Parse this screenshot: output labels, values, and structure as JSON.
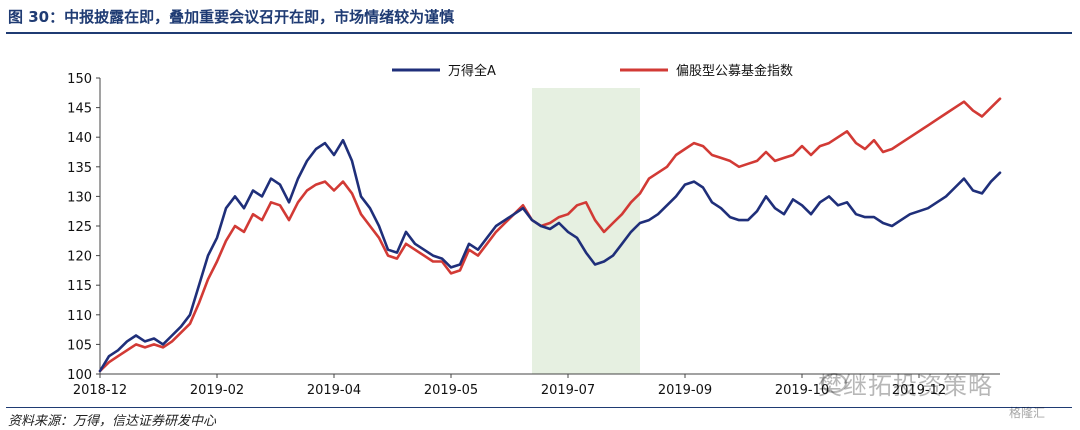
{
  "figure": {
    "title": "图 30：中报披露在即，叠加重要会议召开在即，市场情绪较为谨慎",
    "source": "资料来源：万得，信达证券研发中心",
    "watermark": "樊继拓投资策略",
    "watermark_badge": "格隆汇"
  },
  "colors": {
    "title": "#1f3b73",
    "series1": "#1f2f7a",
    "series2": "#d23a35",
    "highlight": "#e6f0e1"
  },
  "chart_data": {
    "type": "line",
    "title": "",
    "xlabel": "",
    "ylabel": "",
    "ylim": [
      100,
      150
    ],
    "yticks": [
      100,
      105,
      110,
      115,
      120,
      125,
      130,
      135,
      140,
      145,
      150
    ],
    "x_ticks": [
      "2018-12",
      "2019-02",
      "2019-04",
      "2019-05",
      "2019-07",
      "2019-09",
      "2019-10",
      "2019-12"
    ],
    "x_tick_index": [
      0,
      13,
      26,
      39,
      52,
      65,
      78,
      91
    ],
    "xlim_index": [
      0,
      100
    ],
    "grid": false,
    "legend_position": "top",
    "highlight_range_index": [
      48,
      60
    ],
    "series": [
      {
        "name": "万得全A",
        "x_index": [
          0,
          1,
          2,
          3,
          4,
          5,
          6,
          7,
          8,
          9,
          10,
          11,
          12,
          13,
          14,
          15,
          16,
          17,
          18,
          19,
          20,
          21,
          22,
          23,
          24,
          25,
          26,
          27,
          28,
          29,
          30,
          31,
          32,
          33,
          34,
          35,
          36,
          37,
          38,
          39,
          40,
          41,
          42,
          43,
          44,
          45,
          46,
          47,
          48,
          49,
          50,
          51,
          52,
          53,
          54,
          55,
          56,
          57,
          58,
          59,
          60,
          61,
          62,
          63,
          64,
          65,
          66,
          67,
          68,
          69,
          70,
          71,
          72,
          73,
          74,
          75,
          76,
          77,
          78,
          79,
          80,
          81,
          82,
          83,
          84,
          85,
          86,
          87,
          88,
          89,
          90,
          91,
          92,
          93,
          94,
          95,
          96,
          97,
          98,
          99,
          100
        ],
        "values": [
          100.5,
          103.0,
          104.0,
          105.5,
          106.5,
          105.5,
          106.0,
          105.0,
          106.5,
          108.0,
          110.0,
          115.0,
          120.0,
          123.0,
          128.0,
          130.0,
          128.0,
          131.0,
          130.0,
          133.0,
          132.0,
          129.0,
          133.0,
          136.0,
          138.0,
          139.0,
          137.0,
          139.5,
          136.0,
          130.0,
          128.0,
          125.0,
          121.0,
          120.5,
          124.0,
          122.0,
          121.0,
          120.0,
          119.5,
          118.0,
          118.5,
          122.0,
          121.0,
          123.0,
          125.0,
          126.0,
          127.0,
          128.0,
          126.0,
          125.0,
          124.5,
          125.5,
          124.0,
          123.0,
          120.5,
          118.5,
          119.0,
          120.0,
          122.0,
          124.0,
          125.5,
          126.0,
          127.0,
          128.5,
          130.0,
          132.0,
          132.5,
          131.5,
          129.0,
          128.0,
          126.5,
          126.0,
          126.0,
          127.5,
          130.0,
          128.0,
          127.0,
          129.5,
          128.5,
          127.0,
          129.0,
          130.0,
          128.5,
          129.0,
          127.0,
          126.5,
          126.5,
          125.5,
          125.0,
          126.0,
          127.0,
          127.5,
          128.0,
          129.0,
          130.0,
          131.5,
          133.0,
          131.0,
          130.5,
          132.5,
          134.0
        ]
      },
      {
        "name": "偏股型公募基金指数",
        "x_index": [
          0,
          1,
          2,
          3,
          4,
          5,
          6,
          7,
          8,
          9,
          10,
          11,
          12,
          13,
          14,
          15,
          16,
          17,
          18,
          19,
          20,
          21,
          22,
          23,
          24,
          25,
          26,
          27,
          28,
          29,
          30,
          31,
          32,
          33,
          34,
          35,
          36,
          37,
          38,
          39,
          40,
          41,
          42,
          43,
          44,
          45,
          46,
          47,
          48,
          49,
          50,
          51,
          52,
          53,
          54,
          55,
          56,
          57,
          58,
          59,
          60,
          61,
          62,
          63,
          64,
          65,
          66,
          67,
          68,
          69,
          70,
          71,
          72,
          73,
          74,
          75,
          76,
          77,
          78,
          79,
          80,
          81,
          82,
          83,
          84,
          85,
          86,
          87,
          88,
          89,
          90,
          91,
          92,
          93,
          94,
          95,
          96,
          97,
          98,
          99,
          100
        ],
        "values": [
          100.5,
          102.0,
          103.0,
          104.0,
          105.0,
          104.5,
          105.0,
          104.5,
          105.5,
          107.0,
          108.5,
          112.0,
          116.0,
          119.0,
          122.5,
          125.0,
          124.0,
          127.0,
          126.0,
          129.0,
          128.5,
          126.0,
          129.0,
          131.0,
          132.0,
          132.5,
          131.0,
          132.5,
          130.5,
          127.0,
          125.0,
          123.0,
          120.0,
          119.5,
          122.0,
          121.0,
          120.0,
          119.0,
          119.0,
          117.0,
          117.5,
          121.0,
          120.0,
          122.0,
          124.0,
          125.5,
          127.0,
          128.5,
          126.0,
          125.0,
          125.5,
          126.5,
          127.0,
          128.5,
          129.0,
          126.0,
          124.0,
          125.5,
          127.0,
          129.0,
          130.5,
          133.0,
          134.0,
          135.0,
          137.0,
          138.0,
          139.0,
          138.5,
          137.0,
          136.5,
          136.0,
          135.0,
          135.5,
          136.0,
          137.5,
          136.0,
          136.5,
          137.0,
          138.5,
          137.0,
          138.5,
          139.0,
          140.0,
          141.0,
          139.0,
          138.0,
          139.5,
          137.5,
          138.0,
          139.0,
          140.0,
          141.0,
          142.0,
          143.0,
          144.0,
          145.0,
          146.0,
          144.5,
          143.5,
          145.0,
          146.5
        ]
      }
    ]
  }
}
